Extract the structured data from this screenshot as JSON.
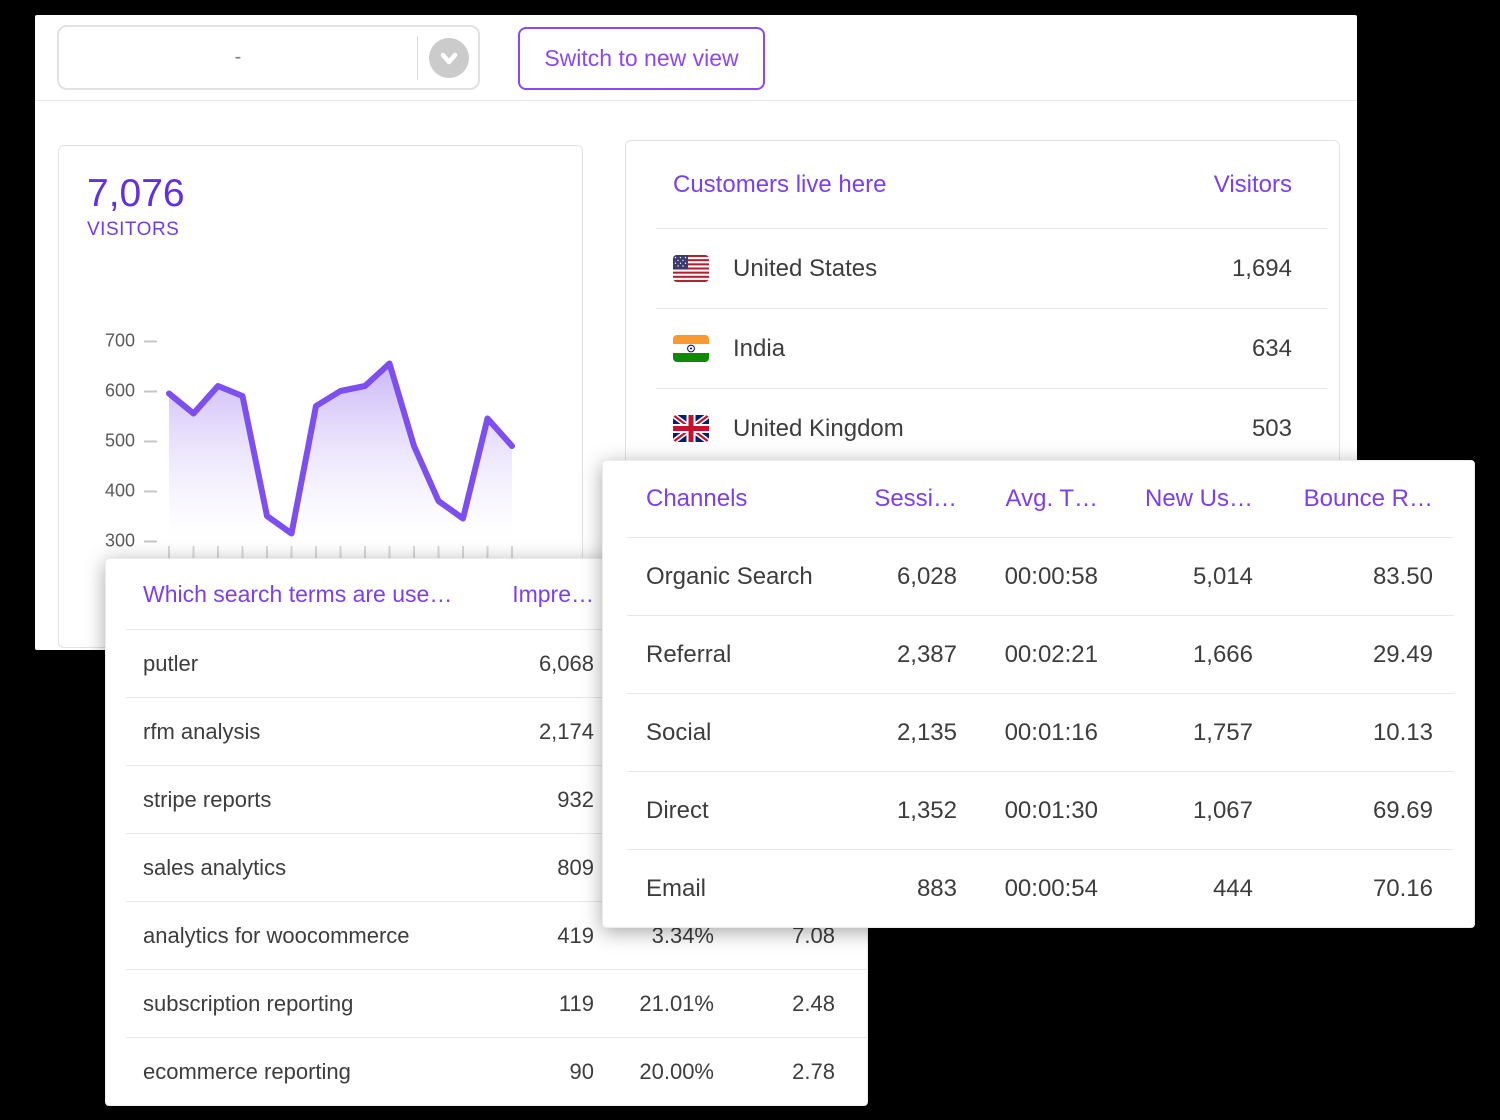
{
  "topbar": {
    "dropdown_value": "-",
    "switch_button_label": "Switch to new view"
  },
  "visitors_card": {
    "count": "7,076",
    "label": "VISITORS"
  },
  "chart_data": {
    "type": "area",
    "title": "",
    "xlabel": "",
    "ylabel": "",
    "x": [
      1,
      2,
      3,
      4,
      5,
      6,
      7,
      8,
      9,
      10,
      11,
      12,
      13,
      14,
      15
    ],
    "x_tick_labels": [],
    "values": [
      595,
      555,
      610,
      590,
      350,
      315,
      570,
      600,
      610,
      655,
      490,
      380,
      345,
      545,
      490
    ],
    "yticks": [
      700,
      600,
      500,
      400,
      300
    ],
    "ylim": [
      300,
      700
    ],
    "grid": false,
    "legend": "none",
    "line_color": "#7d4ff0",
    "fill": "vertical purple gradient fading to white"
  },
  "countries_table": {
    "title": "Customers live here",
    "value_header": "Visitors",
    "rows": [
      {
        "flag": "united-states",
        "name": "United States",
        "visitors": "1,694"
      },
      {
        "flag": "india",
        "name": "India",
        "visitors": "634"
      },
      {
        "flag": "united-kingdom",
        "name": "United Kingdom",
        "visitors": "503"
      }
    ]
  },
  "channels_table": {
    "headers": [
      "Channels",
      "Sessi…",
      "Avg. T…",
      "New Us…",
      "Bounce R…"
    ],
    "rows": [
      {
        "channel": "Organic Search",
        "sessions": "6,028",
        "avg_time": "00:00:58",
        "new_users": "5,014",
        "bounce_rate": "83.50"
      },
      {
        "channel": "Referral",
        "sessions": "2,387",
        "avg_time": "00:02:21",
        "new_users": "1,666",
        "bounce_rate": "29.49"
      },
      {
        "channel": "Social",
        "sessions": "2,135",
        "avg_time": "00:01:16",
        "new_users": "1,757",
        "bounce_rate": "10.13"
      },
      {
        "channel": "Direct",
        "sessions": "1,352",
        "avg_time": "00:01:30",
        "new_users": "1,067",
        "bounce_rate": "69.69"
      },
      {
        "channel": "Email",
        "sessions": "883",
        "avg_time": "00:00:54",
        "new_users": "444",
        "bounce_rate": "70.16"
      }
    ]
  },
  "search_terms_table": {
    "title": "Which search terms are use…",
    "impressions_header": "Impre…",
    "rows": [
      {
        "term": "putler",
        "impressions": "6,068",
        "ctr": "",
        "position": ""
      },
      {
        "term": "rfm analysis",
        "impressions": "2,174",
        "ctr": "",
        "position": ""
      },
      {
        "term": "stripe reports",
        "impressions": "932",
        "ctr": "",
        "position": ""
      },
      {
        "term": "sales analytics",
        "impressions": "809",
        "ctr": "",
        "position": ""
      },
      {
        "term": "analytics for woocommerce",
        "impressions": "419",
        "ctr": "3.34%",
        "position": "7.08"
      },
      {
        "term": "subscription reporting",
        "impressions": "119",
        "ctr": "21.01%",
        "position": "2.48"
      },
      {
        "term": "ecommerce reporting",
        "impressions": "90",
        "ctr": "20.00%",
        "position": "2.78"
      }
    ]
  },
  "colors": {
    "accent_header_purple": "#7b3ff2",
    "kpi_purple": "#6130e6",
    "button_purple": "#8a49f7",
    "chart_line_purple": "#7d4ff0",
    "text_dark": "#3d3d3d",
    "canvas_background": "#000000"
  }
}
